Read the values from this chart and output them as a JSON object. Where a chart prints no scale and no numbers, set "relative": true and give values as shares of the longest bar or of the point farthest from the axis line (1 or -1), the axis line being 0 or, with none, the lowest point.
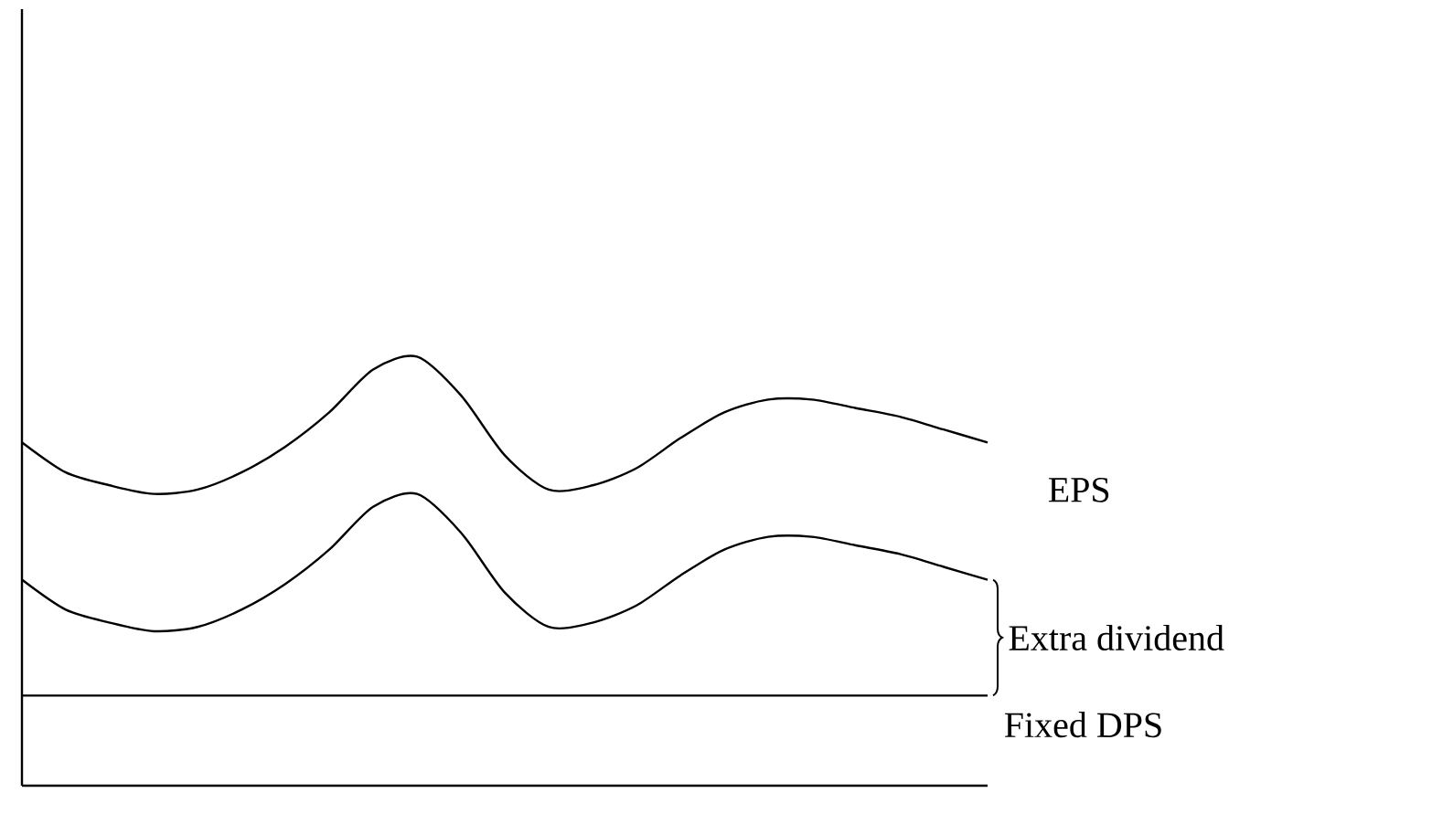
{
  "chart_data": {
    "type": "line",
    "relative": true,
    "categories": [
      null,
      null,
      null,
      null,
      null,
      null,
      null,
      null,
      null,
      null,
      null,
      null,
      null,
      null,
      null,
      null,
      null,
      null,
      null,
      null,
      null,
      null,
      null
    ],
    "series": [
      {
        "name": "EPS",
        "color": "#000000",
        "values": [
          0.8,
          0.73,
          0.7,
          0.68,
          0.69,
          0.73,
          0.79,
          0.87,
          0.97,
          1.0,
          0.91,
          0.77,
          0.69,
          0.7,
          0.74,
          0.81,
          0.87,
          0.9,
          0.9,
          0.88,
          0.86,
          0.83,
          0.8
        ]
      },
      {
        "color": "#000000",
        "values": [
          0.48,
          0.41,
          0.38,
          0.36,
          0.37,
          0.41,
          0.47,
          0.55,
          0.65,
          0.68,
          0.59,
          0.45,
          0.37,
          0.38,
          0.42,
          0.49,
          0.55,
          0.58,
          0.58,
          0.56,
          0.54,
          0.51,
          0.48
        ]
      },
      {
        "name": "Fixed DPS",
        "color": "#000000",
        "values": [
          0.21,
          0.21,
          0.21,
          0.21,
          0.21,
          0.21,
          0.21,
          0.21,
          0.21,
          0.21,
          0.21,
          0.21,
          0.21,
          0.21,
          0.21,
          0.21,
          0.21,
          0.21,
          0.21,
          0.21,
          0.21,
          0.21,
          0.21
        ]
      }
    ],
    "annotations": [
      "Extra dividend"
    ],
    "marker": "none",
    "line_style": "solid"
  }
}
